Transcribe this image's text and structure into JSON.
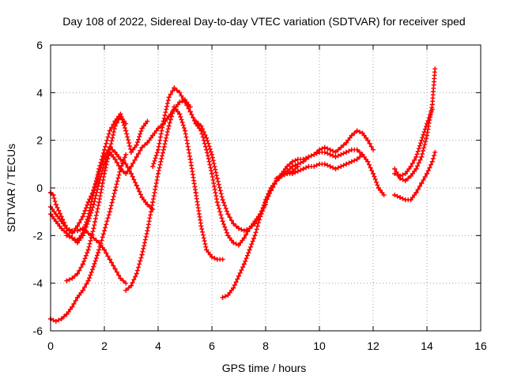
{
  "chart_data": {
    "type": "scatter",
    "title": "Day 108 of 2022, Sidereal Day-to-day VTEC variation (SDTVAR) for receiver sped",
    "xlabel": "GPS time / hours",
    "ylabel": "SDTVAR / TECUs",
    "xlim": [
      0,
      16
    ],
    "ylim": [
      -6,
      6
    ],
    "x_ticks": [
      "0",
      "2",
      "4",
      "6",
      "8",
      "10",
      "12",
      "14",
      "16"
    ],
    "y_ticks": [
      "-6",
      "-4",
      "-2",
      "0",
      "2",
      "4",
      "6"
    ],
    "grid": true,
    "marker": "+",
    "color": "#ff0000",
    "series": [
      {
        "x": [
          0.0,
          0.1,
          0.2,
          0.4,
          0.6,
          0.8,
          1.0,
          1.2,
          1.5,
          1.8,
          2.0,
          2.2,
          2.4,
          2.6,
          2.8
        ],
        "y": [
          -0.2,
          -0.3,
          -0.7,
          -1.2,
          -1.7,
          -1.8,
          -1.8,
          -1.7,
          -2.0,
          -2.3,
          -2.6,
          -3.0,
          -3.4,
          -3.8,
          -4.0
        ]
      },
      {
        "x": [
          0.0,
          0.2,
          0.4,
          0.6,
          0.8,
          1.0,
          1.2,
          1.4,
          1.6,
          1.8,
          2.0,
          2.2,
          2.4,
          2.6,
          2.8,
          3.0,
          3.2,
          3.4,
          3.6,
          3.8
        ],
        "y": [
          -0.8,
          -1.1,
          -1.4,
          -1.7,
          -1.9,
          -1.6,
          -1.2,
          -0.6,
          -0.1,
          0.6,
          1.3,
          1.7,
          1.5,
          1.2,
          1.0,
          0.6,
          0.1,
          -0.4,
          -0.7,
          -0.9
        ]
      },
      {
        "x": [
          0.0,
          0.2,
          0.4,
          0.6,
          0.8,
          1.0,
          1.2,
          1.4,
          1.6,
          1.8,
          2.0,
          2.2,
          2.4,
          2.6,
          2.8,
          3.0,
          3.2,
          3.4,
          3.6,
          3.8,
          4.0,
          4.2,
          4.4,
          4.6,
          4.8,
          5.0,
          5.2
        ],
        "y": [
          -1.1,
          -1.4,
          -1.7,
          -1.9,
          -2.1,
          -2.3,
          -2.0,
          -1.4,
          -0.7,
          0.2,
          1.0,
          1.5,
          1.2,
          0.8,
          0.6,
          0.9,
          1.3,
          1.7,
          1.9,
          2.2,
          2.5,
          2.7,
          3.0,
          3.3,
          3.6,
          3.7,
          3.4
        ]
      },
      {
        "x": [
          0.6,
          0.8,
          1.0,
          1.2,
          1.4,
          1.6,
          1.8,
          2.0,
          2.2,
          2.4,
          2.6,
          2.8,
          3.0,
          3.2,
          3.4,
          3.6
        ],
        "y": [
          -2.0,
          -2.1,
          -2.2,
          -1.9,
          -1.2,
          -0.2,
          0.8,
          1.6,
          2.4,
          2.8,
          3.1,
          2.4,
          1.5,
          1.8,
          2.5,
          2.8
        ]
      },
      {
        "x": [
          0.0,
          0.2,
          0.4,
          0.6,
          0.8,
          1.0,
          1.2,
          1.4,
          1.6,
          1.8,
          2.0,
          2.2,
          2.4,
          2.6,
          2.8
        ],
        "y": [
          -5.5,
          -5.6,
          -5.5,
          -5.3,
          -5.0,
          -4.6,
          -4.3,
          -3.9,
          -3.3,
          -2.6,
          -1.8,
          -1.0,
          -0.1,
          0.8,
          1.4
        ]
      },
      {
        "x": [
          0.6,
          0.8,
          1.0,
          1.2,
          1.4,
          1.6,
          1.8,
          2.0,
          2.2,
          2.4,
          2.6,
          2.8
        ],
        "y": [
          -3.9,
          -3.8,
          -3.6,
          -3.2,
          -2.6,
          -1.7,
          -0.6,
          0.6,
          1.6,
          2.6,
          3.0,
          2.7
        ]
      },
      {
        "x": [
          2.8,
          3.0,
          3.2,
          3.4,
          3.6,
          3.8,
          4.0,
          4.2,
          4.4,
          4.6,
          4.8,
          5.0,
          5.2,
          5.4,
          5.6,
          5.8,
          6.0,
          6.2,
          6.4
        ],
        "y": [
          -4.3,
          -4.1,
          -3.6,
          -2.8,
          -1.8,
          -0.6,
          0.6,
          1.6,
          2.6,
          3.4,
          3.1,
          2.4,
          1.2,
          -0.2,
          -1.6,
          -2.6,
          -2.9,
          -3.0,
          -3.0
        ]
      },
      {
        "x": [
          3.8,
          4.0,
          4.2,
          4.4,
          4.6,
          4.8,
          5.0,
          5.2,
          5.4,
          5.6,
          5.8,
          6.0,
          6.2,
          6.4,
          6.6,
          6.8,
          7.0,
          7.2,
          7.4,
          7.6,
          7.8,
          8.0
        ],
        "y": [
          0.9,
          1.6,
          2.8,
          3.8,
          4.2,
          4.0,
          3.6,
          3.2,
          2.7,
          2.4,
          1.6,
          0.6,
          -0.6,
          -1.4,
          -2.0,
          -2.3,
          -2.4,
          -2.1,
          -1.7,
          -1.4,
          -1.1,
          -0.7
        ]
      },
      {
        "x": [
          5.4,
          5.6,
          5.8,
          6.0,
          6.2,
          6.4,
          6.6,
          6.8,
          7.0,
          7.2,
          7.4,
          7.6,
          7.8,
          8.0,
          8.2,
          8.4,
          8.6,
          8.8,
          9.0,
          9.2
        ],
        "y": [
          2.8,
          2.6,
          2.1,
          1.4,
          0.4,
          -0.5,
          -1.1,
          -1.5,
          -1.7,
          -1.8,
          -1.7,
          -1.5,
          -1.1,
          -0.6,
          -0.1,
          0.3,
          0.5,
          0.6,
          0.7,
          0.9
        ]
      },
      {
        "x": [
          6.4,
          6.6,
          6.8,
          7.0,
          7.2,
          7.4,
          7.6,
          7.8,
          8.0,
          8.2,
          8.4,
          8.6,
          8.8,
          9.0,
          9.2,
          9.4,
          9.6,
          9.8,
          10.0,
          10.2,
          10.4,
          10.6,
          10.8,
          11.0,
          11.2,
          11.4,
          11.6,
          11.8,
          12.0,
          12.2,
          12.4
        ],
        "y": [
          -4.6,
          -4.5,
          -4.2,
          -3.7,
          -3.2,
          -2.6,
          -2.0,
          -1.2,
          -0.5,
          0.0,
          0.3,
          0.5,
          0.7,
          0.9,
          1.0,
          1.1,
          1.3,
          1.4,
          1.5,
          1.5,
          1.4,
          1.3,
          1.4,
          1.5,
          1.6,
          1.6,
          1.4,
          1.1,
          0.6,
          0.0,
          -0.3
        ]
      },
      {
        "x": [
          7.8,
          8.0,
          8.2,
          8.4,
          8.6,
          8.8,
          9.0,
          9.2,
          9.4,
          9.6,
          9.8,
          10.0,
          10.2,
          10.4,
          10.6,
          10.8,
          11.0,
          11.2,
          11.4,
          11.6,
          11.8,
          12.0
        ],
        "y": [
          -1.2,
          -0.6,
          -0.1,
          0.3,
          0.6,
          0.9,
          1.1,
          1.2,
          1.2,
          1.3,
          1.4,
          1.6,
          1.7,
          1.6,
          1.5,
          1.7,
          1.9,
          2.2,
          2.4,
          2.3,
          2.0,
          1.6
        ]
      },
      {
        "x": [
          8.4,
          8.6,
          8.8,
          9.0,
          9.2,
          9.4,
          9.6,
          9.8,
          10.0,
          10.2,
          10.4,
          10.6,
          10.8,
          11.0,
          11.2,
          11.4,
          11.6
        ],
        "y": [
          0.4,
          0.5,
          0.6,
          0.6,
          0.7,
          0.8,
          0.9,
          0.9,
          1.0,
          1.0,
          0.9,
          0.8,
          0.9,
          1.0,
          1.1,
          1.2,
          1.4
        ]
      },
      {
        "x": [
          12.8,
          13.0,
          13.2,
          13.4,
          13.6,
          13.8,
          14.0,
          14.2,
          14.3
        ],
        "y": [
          0.8,
          0.4,
          0.3,
          0.5,
          0.8,
          1.3,
          2.2,
          3.5,
          5.0
        ]
      },
      {
        "x": [
          12.8,
          13.0,
          13.2,
          13.4,
          13.6,
          13.8,
          14.0,
          14.2,
          14.3
        ],
        "y": [
          -0.3,
          -0.4,
          -0.5,
          -0.5,
          -0.2,
          0.2,
          0.6,
          1.1,
          1.5
        ]
      },
      {
        "x": [
          12.8,
          13.0,
          13.2,
          13.4,
          13.6,
          13.8,
          14.0,
          14.2
        ],
        "y": [
          0.6,
          0.5,
          0.6,
          0.9,
          1.3,
          2.0,
          2.7,
          3.3
        ]
      }
    ]
  }
}
